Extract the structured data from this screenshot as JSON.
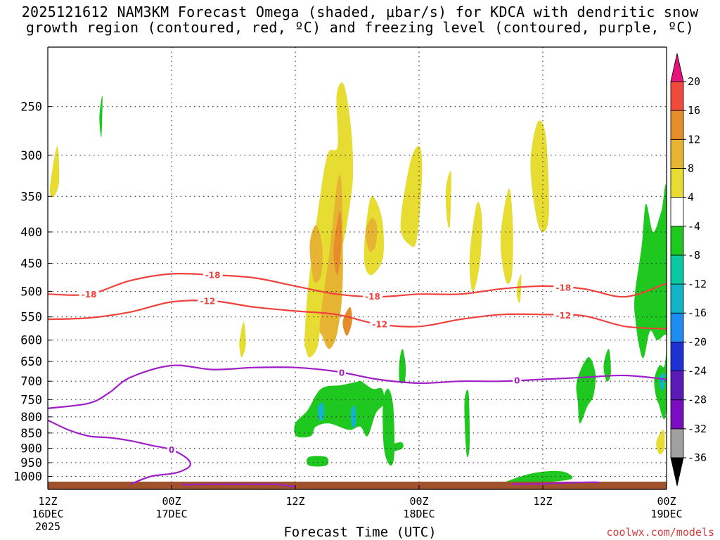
{
  "title": {
    "line1": "2025121612 NAM3KM Forecast Omega (shaded, μbar/s) for KDCA with dendritic snow",
    "line2": "growth region (contoured, red, ºC) and freezing level (contoured, purple, ºC)"
  },
  "x_axis_title": "Forecast Time (UTC)",
  "credit": "coolwx.com/models",
  "colors": {
    "dgz_contour": "#f0413c",
    "freezing_contour": "#a01ec8",
    "ground": "#a0522d",
    "gridline": "#333333"
  },
  "chart_data": {
    "type": "heatmap",
    "title": "2025121612 NAM3KM Forecast Omega (shaded, μbar/s) for KDCA with dendritic snow growth region (contoured, red, ºC) and freezing level (contoured, purple, ºC)",
    "xlabel": "Forecast Time (UTC)",
    "ylabel": "",
    "x_unit": "hours after 2025-12-16 12Z",
    "xlim": [
      0,
      60
    ],
    "y_scale": "log-pressure (hPa), inverted",
    "ylim": [
      1050,
      200
    ],
    "grid": true,
    "y_ticks": [
      250,
      300,
      350,
      400,
      450,
      500,
      550,
      600,
      650,
      700,
      750,
      800,
      850,
      900,
      950,
      1000
    ],
    "x_ticks": [
      {
        "hour": 0,
        "label": "12Z",
        "date": "16DEC",
        "year": "2025"
      },
      {
        "hour": 12,
        "label": "00Z",
        "date": "17DEC",
        "year": ""
      },
      {
        "hour": 24,
        "label": "12Z",
        "date": "",
        "year": ""
      },
      {
        "hour": 36,
        "label": "00Z",
        "date": "18DEC",
        "year": ""
      },
      {
        "hour": 48,
        "label": "12Z",
        "date": "",
        "year": ""
      },
      {
        "hour": 60,
        "label": "00Z",
        "date": "19DEC",
        "year": ""
      }
    ],
    "colorbar": {
      "levels": [
        -36,
        -32,
        -28,
        -24,
        -20,
        -16,
        -12,
        -8,
        -4,
        4,
        8,
        12,
        16,
        20
      ],
      "colors": [
        "#a0a0a0",
        "#7a0dc0",
        "#5a1ab4",
        "#1e32d2",
        "#1e8cf0",
        "#14b4c8",
        "#0ac8a0",
        "#1ec81e",
        "#ffffff",
        "#e6dc32",
        "#e6b432",
        "#e68c28",
        "#f04a3c"
      ],
      "under_color": "#000000",
      "over_color": "#e6147a"
    },
    "contours": {
      "dgz_minus18": {
        "label": "-18",
        "hours": [
          0,
          4,
          8,
          12,
          16,
          20,
          24,
          28,
          32,
          36,
          40,
          44,
          48,
          52,
          56,
          60
        ],
        "pressure": [
          505,
          505,
          480,
          468,
          470,
          475,
          490,
          505,
          510,
          505,
          505,
          495,
          490,
          495,
          510,
          485
        ]
      },
      "dgz_minus12": {
        "label": "-12",
        "hours": [
          0,
          4,
          8,
          12,
          16,
          20,
          24,
          28,
          32,
          36,
          40,
          44,
          48,
          52,
          56,
          60
        ],
        "pressure": [
          555,
          552,
          540,
          520,
          518,
          530,
          538,
          545,
          565,
          570,
          555,
          545,
          545,
          548,
          570,
          575
        ]
      },
      "freezing_upper": {
        "label": "0",
        "hours": [
          0,
          4,
          6,
          8,
          12,
          16,
          20,
          24,
          28,
          32,
          36,
          40,
          44,
          48,
          52,
          56,
          60
        ],
        "pressure": [
          775,
          760,
          730,
          690,
          660,
          670,
          665,
          665,
          675,
          695,
          705,
          700,
          700,
          695,
          690,
          685,
          695
        ]
      },
      "freezing_lower": {
        "label": "0",
        "hours": [
          0,
          2,
          4,
          6,
          8,
          10,
          12,
          13.5,
          13.8,
          13,
          12,
          10,
          8
        ],
        "pressure": [
          810,
          840,
          860,
          865,
          875,
          890,
          905,
          935,
          960,
          980,
          990,
          1000,
          1030
        ]
      },
      "freezing_surface": {
        "label": "",
        "hours": [
          13,
          16,
          20,
          22,
          24
        ],
        "pressure": [
          1032,
          1030,
          1030,
          1030,
          1040
        ]
      },
      "freezing_surface2": {
        "label": "",
        "hours": [
          45,
          48,
          50,
          53,
          53.5
        ],
        "pressure": [
          1030,
          1028,
          1025,
          1022,
          1026
        ]
      }
    },
    "omega_regions": [
      {
        "value": 6,
        "hours": [
          24.9,
          25.2,
          26.1,
          27.1,
          28.1,
          28.0,
          28.7,
          29.4,
          29.6,
          29.3,
          28.6,
          27.6,
          26.7,
          26.2,
          25.4,
          25.0
        ],
        "pressure": [
          600,
          500,
          380,
          300,
          290,
          240,
          230,
          270,
          320,
          360,
          420,
          470,
          520,
          610,
          640,
          620
        ]
      },
      {
        "value": 6,
        "hours": [
          30.8,
          31.4,
          32.4,
          32.5,
          31.4,
          30.7
        ],
        "pressure": [
          400,
          350,
          380,
          440,
          470,
          450
        ]
      },
      {
        "value": 6,
        "hours": [
          34.2,
          35.1,
          36.0,
          36.3,
          35.8,
          35.1
        ],
        "pressure": [
          390,
          310,
          290,
          320,
          410,
          420
        ]
      },
      {
        "value": 6,
        "hours": [
          40.9,
          41.6,
          42.1,
          41.9,
          41.2
        ],
        "pressure": [
          440,
          360,
          380,
          450,
          500
        ]
      },
      {
        "value": 6,
        "hours": [
          43.9,
          44.7,
          45.1,
          45.0,
          44.4
        ],
        "pressure": [
          410,
          340,
          390,
          470,
          480
        ]
      },
      {
        "value": 6,
        "hours": [
          46.8,
          47.5,
          48.3,
          48.6,
          48.1,
          47.4
        ],
        "pressure": [
          310,
          265,
          280,
          370,
          400,
          380
        ]
      },
      {
        "value": 6,
        "hours": [
          38.6,
          39.1,
          39.0,
          38.7
        ],
        "pressure": [
          340,
          320,
          390,
          380
        ]
      },
      {
        "value": 6,
        "hours": [
          45.5,
          45.9,
          45.8,
          45.5
        ],
        "pressure": [
          490,
          470,
          520,
          510
        ]
      },
      {
        "value": 6,
        "hours": [
          18.6,
          19.0,
          19.2,
          18.8,
          18.6
        ],
        "pressure": [
          600,
          560,
          610,
          640,
          620
        ]
      },
      {
        "value": 6,
        "hours": [
          0.2,
          0.9,
          1.1,
          0.6
        ],
        "pressure": [
          340,
          290,
          330,
          350
        ]
      },
      {
        "value": 6,
        "hours": [
          59.0,
          59.7,
          59.8,
          59.3
        ],
        "pressure": [
          880,
          840,
          900,
          920
        ]
      },
      {
        "value": 10,
        "hours": [
          26.4,
          27.4,
          28.1,
          28.5,
          28.6,
          28.1,
          27.3,
          26.6
        ],
        "pressure": [
          560,
          420,
          330,
          340,
          480,
          580,
          620,
          590
        ]
      },
      {
        "value": 10,
        "hours": [
          25.4,
          26.0,
          26.6,
          26.5,
          25.8
        ],
        "pressure": [
          420,
          390,
          420,
          470,
          480
        ]
      },
      {
        "value": 10,
        "hours": [
          30.8,
          31.4,
          31.9,
          31.8,
          31.2
        ],
        "pressure": [
          400,
          380,
          390,
          420,
          430
        ]
      },
      {
        "value": 10,
        "hours": [
          28.0,
          28.3,
          28.1
        ],
        "pressure": [
          420,
          400,
          460
        ]
      },
      {
        "value": 14,
        "hours": [
          27.7,
          28.3,
          28.5,
          28.1
        ],
        "pressure": [
          430,
          370,
          410,
          470
        ]
      },
      {
        "value": 14,
        "hours": [
          28.6,
          29.3,
          29.5,
          29.0
        ],
        "pressure": [
          560,
          530,
          560,
          590
        ]
      },
      {
        "value": -6,
        "hours": [
          25.2,
          26.5,
          28.5,
          30.2,
          30.4,
          31.5,
          32.4,
          32.6,
          31.8,
          31.0,
          30.3,
          29.2,
          27.3,
          26.0,
          25.5,
          24.1,
          24.0
        ],
        "pressure": [
          780,
          720,
          710,
          700,
          700,
          720,
          720,
          760,
          790,
          860,
          830,
          840,
          820,
          830,
          860,
          860,
          820
        ]
      },
      {
        "value": -6,
        "hours": [
          32.5,
          33.0,
          33.5,
          33.6,
          33.2,
          32.6
        ],
        "pressure": [
          760,
          720,
          770,
          920,
          960,
          900
        ]
      },
      {
        "value": -6,
        "hours": [
          33.3,
          34.3,
          34.4,
          33.4
        ],
        "pressure": [
          890,
          880,
          900,
          910
        ]
      },
      {
        "value": -6,
        "hours": [
          34.1,
          34.4,
          34.7,
          34.6,
          34.1
        ],
        "pressure": [
          650,
          620,
          660,
          700,
          700
        ]
      },
      {
        "value": -6,
        "hours": [
          40.4,
          40.8,
          40.9,
          40.6
        ],
        "pressure": [
          760,
          730,
          890,
          920
        ]
      },
      {
        "value": -6,
        "hours": [
          25.3,
          27.0,
          27.0,
          25.3
        ],
        "pressure": [
          930,
          930,
          960,
          960
        ]
      },
      {
        "value": -6,
        "hours": [
          51.3,
          52.4,
          53.1,
          52.9,
          52.3,
          51.6,
          51.4
        ],
        "pressure": [
          700,
          640,
          680,
          740,
          770,
          820,
          760
        ]
      },
      {
        "value": -6,
        "hours": [
          53.9,
          54.4,
          54.6,
          54.2
        ],
        "pressure": [
          660,
          620,
          680,
          700
        ]
      },
      {
        "value": -6,
        "hours": [
          56.9,
          57.6,
          58.0,
          58.7,
          59.5,
          60.0,
          60.0,
          59.2,
          58.8,
          59.3,
          59.8,
          60.0,
          59.1,
          58.4,
          57.8,
          57.4,
          57.0
        ],
        "pressure": [
          510,
          420,
          360,
          400,
          370,
          350,
          760,
          760,
          700,
          660,
          660,
          590,
          600,
          580,
          640,
          620,
          560
        ]
      },
      {
        "value": -6,
        "hours": [
          5.0,
          5.3,
          5.2
        ],
        "pressure": [
          260,
          240,
          280
        ]
      },
      {
        "value": -6,
        "hours": [
          44.3,
          46.8,
          49.2,
          50.5,
          50.6,
          47.0,
          44.7
        ],
        "pressure": [
          1022,
          990,
          980,
          990,
          1012,
          1025,
          1024
        ]
      },
      {
        "value": -14,
        "hours": [
          26.2,
          26.7,
          26.8,
          26.3
        ],
        "pressure": [
          770,
          760,
          800,
          810
        ]
      },
      {
        "value": -14,
        "hours": [
          29.4,
          29.8,
          29.9,
          29.5
        ],
        "pressure": [
          780,
          770,
          820,
          830
        ]
      },
      {
        "value": -14,
        "hours": [
          59.3,
          59.8,
          59.7,
          59.4
        ],
        "pressure": [
          690,
          680,
          720,
          720
        ]
      }
    ]
  }
}
